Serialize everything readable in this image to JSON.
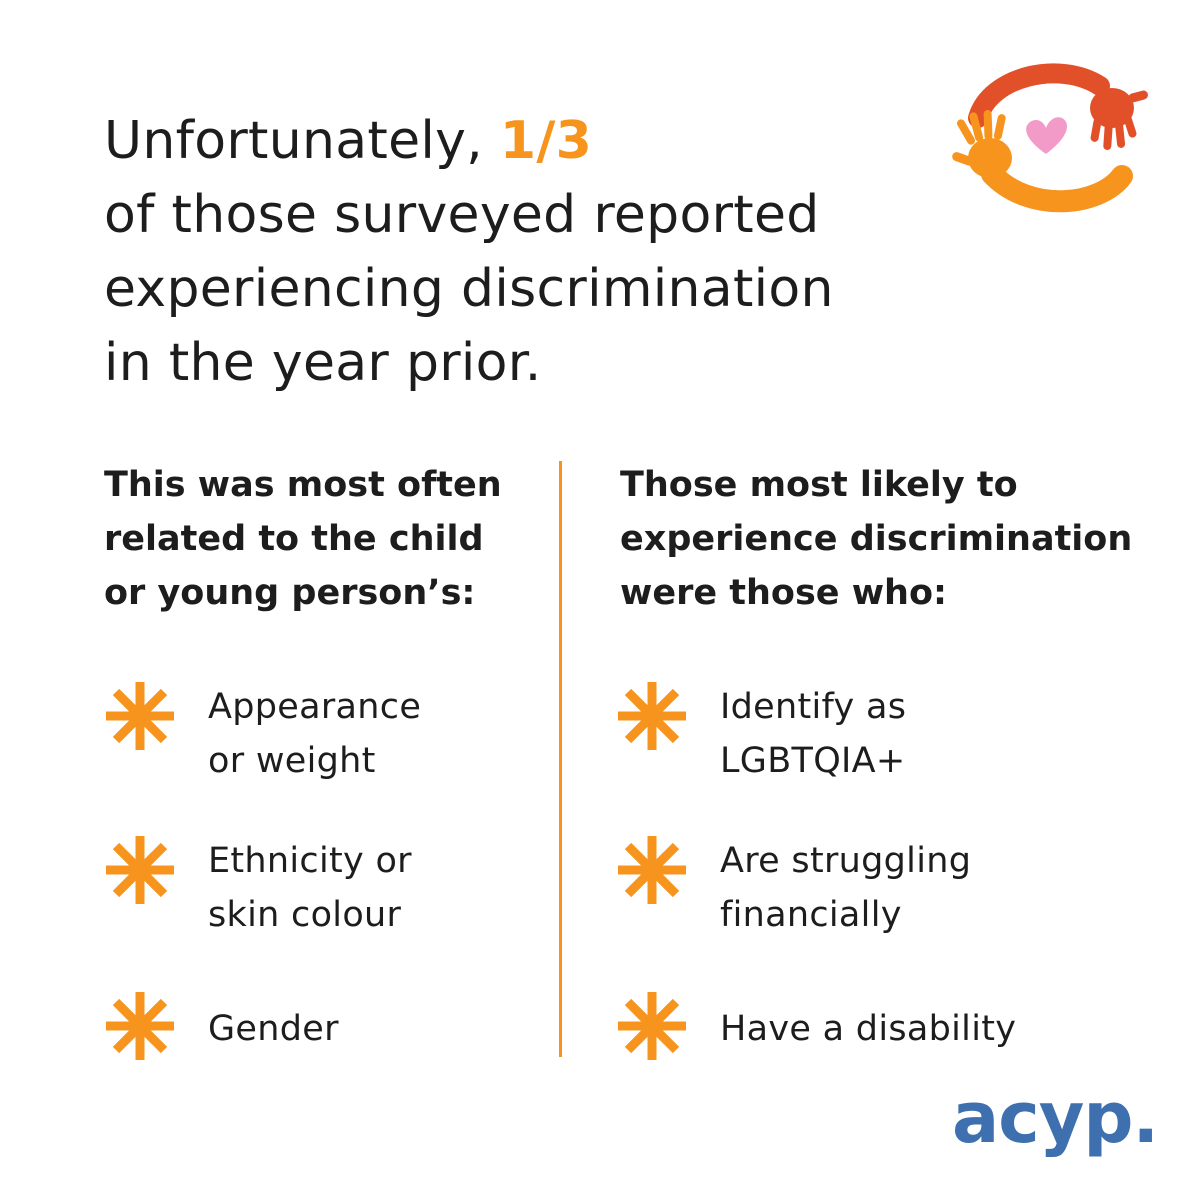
{
  "headline": {
    "prefix": "Unfortunately, ",
    "stat": "1/3",
    "line2": "of those surveyed reported",
    "line3": "experiencing discrimination",
    "line4": "in the year prior."
  },
  "left": {
    "heading": [
      "This was most often",
      "related to the child",
      "or young person’s:"
    ],
    "items": [
      {
        "lines": [
          "Appearance",
          "or weight"
        ]
      },
      {
        "lines": [
          "Ethnicity or",
          "skin colour"
        ]
      },
      {
        "lines": [
          "Gender"
        ]
      }
    ]
  },
  "right": {
    "heading": [
      "Those most likely to",
      "experience discrimination",
      "were those who:"
    ],
    "items": [
      {
        "lines": [
          "Identify as",
          "LGBTQIA+"
        ]
      },
      {
        "lines": [
          "Are struggling",
          "financially"
        ]
      },
      {
        "lines": [
          "Have a disability"
        ]
      }
    ]
  },
  "brand": "acyp.",
  "colors": {
    "accent": "#f7941d",
    "brand": "#3e6fae",
    "hand_red": "#e2502a",
    "heart": "#f29bc8"
  },
  "icons": {
    "bullet": "asterisk-icon",
    "logo": "hands-heart-logo"
  }
}
